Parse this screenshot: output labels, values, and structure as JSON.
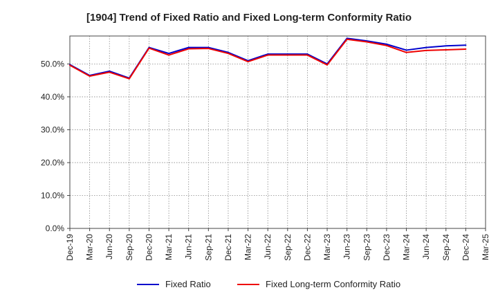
{
  "chart_data": {
    "type": "line",
    "title": "[1904]  Trend of Fixed Ratio and Fixed Long-term Conformity Ratio",
    "xlabel": "",
    "ylabel": "",
    "ylim": [
      0,
      58.5
    ],
    "yticks": [
      0,
      10,
      20,
      30,
      40,
      50
    ],
    "ytick_labels": [
      "0.0%",
      "10.0%",
      "20.0%",
      "30.0%",
      "40.0%",
      "50.0%"
    ],
    "categories": [
      "Dec-19",
      "Mar-20",
      "Jun-20",
      "Sep-20",
      "Dec-20",
      "Mar-21",
      "Jun-21",
      "Sep-21",
      "Dec-21",
      "Mar-22",
      "Jun-22",
      "Sep-22",
      "Dec-22",
      "Mar-23",
      "Jun-23",
      "Sep-23",
      "Dec-23",
      "Mar-24",
      "Jun-24",
      "Sep-24",
      "Dec-24",
      "Mar-25"
    ],
    "grid": true,
    "legend_position": "bottom-center",
    "series": [
      {
        "name": "Fixed Ratio",
        "color": "#0000cc",
        "values": [
          49.8,
          46.5,
          47.8,
          45.7,
          55.0,
          53.2,
          55.0,
          55.0,
          53.5,
          51.0,
          53.0,
          53.0,
          53.0,
          50.0,
          57.8,
          57.0,
          56.0,
          54.2,
          55.0,
          55.5,
          55.7,
          null
        ]
      },
      {
        "name": "Fixed Long-term Conformity Ratio",
        "color": "#ee0000",
        "values": [
          49.6,
          46.3,
          47.5,
          45.5,
          54.8,
          52.7,
          54.6,
          54.7,
          53.2,
          50.7,
          52.7,
          52.7,
          52.7,
          49.7,
          57.5,
          56.7,
          55.6,
          53.5,
          54.1,
          54.3,
          54.5,
          null
        ]
      }
    ]
  }
}
